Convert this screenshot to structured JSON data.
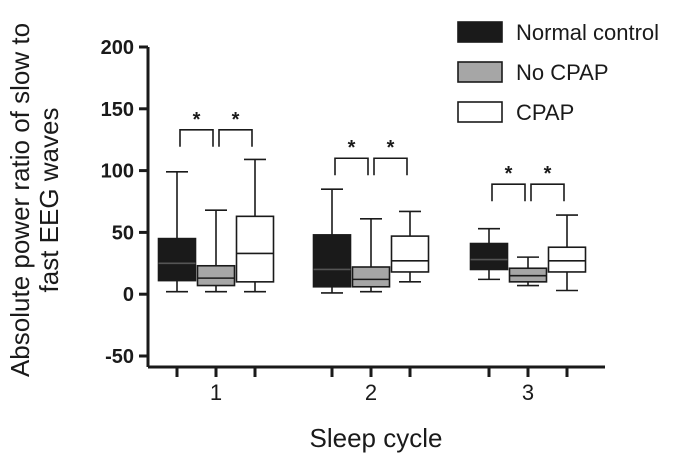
{
  "chart_data": {
    "type": "boxplot",
    "xlabel": "Sleep cycle",
    "ylabel_lines": [
      "Absolute power ratio of slow to",
      "fast EEG waves"
    ],
    "ylim": [
      -50,
      200
    ],
    "yticks": [
      -50,
      0,
      50,
      100,
      150,
      200
    ],
    "categories": [
      "1",
      "2",
      "3"
    ],
    "series": [
      {
        "name": "Normal control",
        "fill": "#1a1a1a",
        "median_color": "#555555",
        "boxes": [
          {
            "min": 2,
            "q1": 11,
            "median": 25,
            "q3": 45,
            "max": 99
          },
          {
            "min": 1,
            "q1": 6,
            "median": 20,
            "q3": 48,
            "max": 85
          },
          {
            "min": 12,
            "q1": 20,
            "median": 28,
            "q3": 41,
            "max": 53
          }
        ]
      },
      {
        "name": "No CPAP",
        "fill": "#a6a6a6",
        "median_color": "#1a1a1a",
        "boxes": [
          {
            "min": 2,
            "q1": 7,
            "median": 13,
            "q3": 23,
            "max": 68
          },
          {
            "min": 2,
            "q1": 6,
            "median": 12,
            "q3": 22,
            "max": 61
          },
          {
            "min": 7,
            "q1": 10,
            "median": 15,
            "q3": 21,
            "max": 30
          }
        ]
      },
      {
        "name": "CPAP",
        "fill": "#ffffff",
        "median_color": "#1a1a1a",
        "boxes": [
          {
            "min": 2,
            "q1": 10,
            "median": 33,
            "q3": 63,
            "max": 109
          },
          {
            "min": 10,
            "q1": 18,
            "median": 27,
            "q3": 47,
            "max": 67
          },
          {
            "min": 3,
            "q1": 18,
            "median": 27,
            "q3": 38,
            "max": 64
          }
        ]
      }
    ],
    "significance": [
      {
        "category": 0,
        "pairs": [
          [
            0,
            1
          ],
          [
            1,
            2
          ]
        ],
        "level": 133,
        "label": "*"
      },
      {
        "category": 1,
        "pairs": [
          [
            0,
            1
          ],
          [
            1,
            2
          ]
        ],
        "level": 110,
        "label": "*"
      },
      {
        "category": 2,
        "pairs": [
          [
            0,
            1
          ],
          [
            1,
            2
          ]
        ],
        "level": 89,
        "label": "*"
      }
    ],
    "legend_position": "top-right"
  }
}
